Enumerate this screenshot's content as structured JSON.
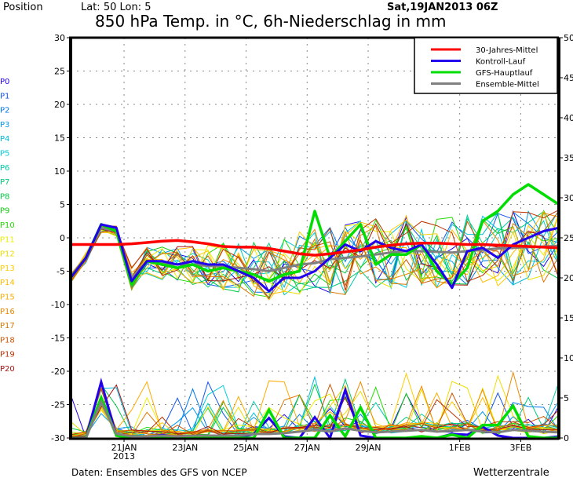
{
  "header": {
    "position_label": "Position",
    "location": "Lat: 50 Lon: 5",
    "run_time": "Sat,19JAN2013 06Z",
    "title": "850 hPa Temp. in °C, 6h-Niederschlag in mm"
  },
  "footer": {
    "source": "Daten: Ensembles des GFS von NCEP",
    "brand": "Wetterzentrale"
  },
  "chart_data": {
    "type": "line",
    "title": "850 hPa Temp. in °C, 6h-Niederschlag in mm",
    "x_unit": "hours since 19JAN2013 06Z",
    "x_range": [
      0,
      384
    ],
    "x_ticks": [
      {
        "hour": 42,
        "label": "21JAN",
        "sublabel": "2013"
      },
      {
        "hour": 90,
        "label": "23JAN",
        "sublabel": ""
      },
      {
        "hour": 138,
        "label": "25JAN",
        "sublabel": ""
      },
      {
        "hour": 186,
        "label": "27JAN",
        "sublabel": ""
      },
      {
        "hour": 234,
        "label": "29JAN",
        "sublabel": ""
      },
      {
        "hour": 306,
        "label": "1FEB",
        "sublabel": ""
      },
      {
        "hour": 354,
        "label": "3FEB",
        "sublabel": ""
      }
    ],
    "y_left": {
      "label": "850 hPa Temp. (°C)",
      "range": [
        -30,
        30
      ],
      "ticks": [
        30,
        25,
        20,
        15,
        10,
        5,
        0,
        -5,
        -10,
        -15,
        -20,
        -25,
        -30
      ]
    },
    "y_right": {
      "label": "6h-Niederschlag (mm)",
      "range": [
        0,
        50
      ],
      "ticks": [
        50,
        45,
        40,
        35,
        30,
        25,
        20,
        15,
        10,
        5,
        0
      ]
    },
    "grid": true,
    "legend_position": "top-right",
    "legend": [
      {
        "name": "30-Jahres-Mittel",
        "color": "#ff0000"
      },
      {
        "name": "Kontroll-Lauf",
        "color": "#2200ee"
      },
      {
        "name": "GFS-Hauptlauf",
        "color": "#00dd00"
      },
      {
        "name": "Ensemble-Mittel",
        "color": "#808080"
      }
    ],
    "time_step_hours": 12,
    "main_series": [
      {
        "name": "30-Jahres-Mittel",
        "color": "#ff0000",
        "width": 3.5,
        "temp": [
          -1,
          -1,
          -1,
          -1,
          -0.9,
          -0.7,
          -0.5,
          -0.4,
          -0.6,
          -0.9,
          -1.3,
          -1.4,
          -1.4,
          -1.6,
          -2,
          -2.4,
          -2.6,
          -2.4,
          -2.1,
          -1.8,
          -1.4,
          -1.1,
          -0.9,
          -0.8,
          -0.8,
          -0.9,
          -1,
          -1,
          -1.1,
          -1.2,
          -1.3,
          -1.4,
          -1.5
        ],
        "precip": null
      },
      {
        "name": "Kontroll-Lauf",
        "color": "#2200ee",
        "width": 3,
        "temp": [
          -6,
          -3,
          2,
          1.5,
          -6.5,
          -3.5,
          -3.5,
          -4,
          -3.5,
          -4,
          -4,
          -5,
          -6,
          -8,
          -6,
          -6,
          -5,
          -3,
          -1,
          -2,
          -0.5,
          -1.5,
          -2,
          -1,
          -4,
          -7.5,
          -2,
          -1.5,
          -3,
          -1,
          0,
          1,
          1.5
        ],
        "precip": [
          0,
          0,
          7,
          0.3,
          0,
          0,
          0.4,
          0,
          0,
          0,
          0.2,
          0,
          0.5,
          2.5,
          0.2,
          0,
          2.6,
          0,
          6,
          0.3,
          0,
          0,
          0,
          0.2,
          0,
          0.5,
          0.4,
          1.4,
          0.3,
          0,
          0,
          0,
          0.2
        ]
      },
      {
        "name": "GFS-Hauptlauf",
        "color": "#00dd00",
        "width": 3.5,
        "temp": [
          -6,
          -3,
          2,
          1,
          -7,
          -3.5,
          -4,
          -4.5,
          -4,
          -5,
          -4.5,
          -5,
          -5.5,
          -6.5,
          -5.5,
          -5,
          4,
          -3,
          -0.5,
          2,
          -4,
          -2.5,
          -2.5,
          -1,
          -5,
          -7,
          -4.5,
          2.5,
          4,
          6.5,
          8,
          6.5,
          5
        ],
        "precip": [
          0,
          0,
          5,
          0.3,
          0,
          0,
          0.2,
          0,
          0,
          0,
          0.2,
          0,
          0,
          3.5,
          0,
          0,
          0,
          2.8,
          0.2,
          3.8,
          0,
          0,
          0,
          0.2,
          0,
          0.4,
          0,
          1.6,
          1.6,
          4,
          0.2,
          0,
          0
        ]
      },
      {
        "name": "Ensemble-Mittel",
        "color": "#808080",
        "width": 3,
        "temp": [
          -6,
          -3,
          1.5,
          1,
          -6,
          -3.5,
          -3.8,
          -4,
          -4,
          -4.2,
          -4.3,
          -4.5,
          -4.7,
          -5,
          -4.5,
          -4,
          -3.8,
          -3.2,
          -3,
          -2.8,
          -2.5,
          -2.2,
          -2,
          -2,
          -2.1,
          -2.2,
          -2,
          -1.8,
          -1.6,
          -1.5,
          -1.4,
          -1.3,
          -1.2
        ],
        "precip": [
          0,
          0,
          4.5,
          0.5,
          0.2,
          0.2,
          0.3,
          0.2,
          0.3,
          0.3,
          0.3,
          0.3,
          0.5,
          0.5,
          0.6,
          0.8,
          1,
          0.8,
          1.2,
          0.9,
          0.7,
          0.8,
          0.9,
          1,
          0.8,
          0.9,
          1,
          0.8,
          0.7,
          1,
          0.9,
          0.8,
          0.7
        ]
      }
    ],
    "members": [
      {
        "name": "P0",
        "color": "#2200ee"
      },
      {
        "name": "P1",
        "color": "#1155ee"
      },
      {
        "name": "P2",
        "color": "#0077ee"
      },
      {
        "name": "P3",
        "color": "#0099ee"
      },
      {
        "name": "P4",
        "color": "#00bbdd"
      },
      {
        "name": "P5",
        "color": "#00ccdd"
      },
      {
        "name": "P6",
        "color": "#00ccaa"
      },
      {
        "name": "P7",
        "color": "#00cc77"
      },
      {
        "name": "P8",
        "color": "#00cc44"
      },
      {
        "name": "P9",
        "color": "#11cc11"
      },
      {
        "name": "P10",
        "color": "#22dd00"
      },
      {
        "name": "P11",
        "color": "#eeee00"
      },
      {
        "name": "P12",
        "color": "#eedd00"
      },
      {
        "name": "P13",
        "color": "#ffcc00"
      },
      {
        "name": "P14",
        "color": "#ffbb00"
      },
      {
        "name": "P15",
        "color": "#ffaa00"
      },
      {
        "name": "P16",
        "color": "#ee8800"
      },
      {
        "name": "P17",
        "color": "#dd7700"
      },
      {
        "name": "P18",
        "color": "#cc5500"
      },
      {
        "name": "P19",
        "color": "#bb3300"
      },
      {
        "name": "P20",
        "color": "#aa1111"
      }
    ]
  }
}
